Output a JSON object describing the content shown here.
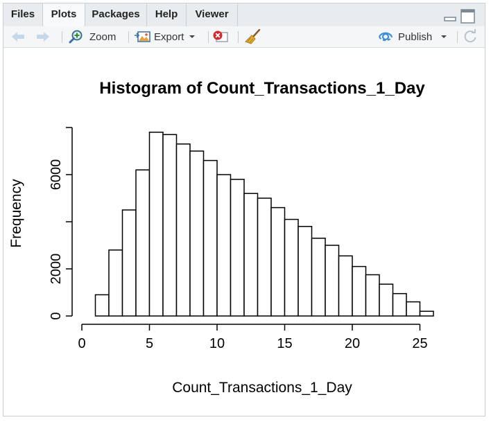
{
  "tabs": [
    {
      "label": "Files",
      "active": false
    },
    {
      "label": "Plots",
      "active": true
    },
    {
      "label": "Packages",
      "active": false
    },
    {
      "label": "Help",
      "active": false
    },
    {
      "label": "Viewer",
      "active": false
    }
  ],
  "toolbar": {
    "zoom_label": "Zoom",
    "export_label": "Export",
    "publish_label": "Publish"
  },
  "icons": {
    "back": "arrow-left-icon",
    "forward": "arrow-right-icon",
    "zoom": "magnifier-plus-icon",
    "export": "image-export-icon",
    "remove": "remove-plot-icon",
    "clear": "broom-icon",
    "publish": "publish-icon",
    "refresh": "refresh-icon",
    "minimize": "minimize-icon",
    "maximize": "maximize-icon"
  },
  "chart_data": {
    "type": "bar",
    "title": "Histogram of Count_Transactions_1_Day",
    "xlabel": "Count_Transactions_1_Day",
    "ylabel": "Frequency",
    "bins": [
      {
        "from": 1,
        "to": 2,
        "count": 900
      },
      {
        "from": 2,
        "to": 3,
        "count": 2800
      },
      {
        "from": 3,
        "to": 4,
        "count": 4500
      },
      {
        "from": 4,
        "to": 5,
        "count": 6200
      },
      {
        "from": 5,
        "to": 6,
        "count": 7800
      },
      {
        "from": 6,
        "to": 7,
        "count": 7700
      },
      {
        "from": 7,
        "to": 8,
        "count": 7300
      },
      {
        "from": 8,
        "to": 9,
        "count": 7000
      },
      {
        "from": 9,
        "to": 10,
        "count": 6600
      },
      {
        "from": 10,
        "to": 11,
        "count": 6000
      },
      {
        "from": 11,
        "to": 12,
        "count": 5800
      },
      {
        "from": 12,
        "to": 13,
        "count": 5200
      },
      {
        "from": 13,
        "to": 14,
        "count": 5000
      },
      {
        "from": 14,
        "to": 15,
        "count": 4600
      },
      {
        "from": 15,
        "to": 16,
        "count": 4100
      },
      {
        "from": 16,
        "to": 17,
        "count": 3800
      },
      {
        "from": 17,
        "to": 18,
        "count": 3300
      },
      {
        "from": 18,
        "to": 19,
        "count": 3000
      },
      {
        "from": 19,
        "to": 20,
        "count": 2550
      },
      {
        "from": 20,
        "to": 21,
        "count": 2100
      },
      {
        "from": 21,
        "to": 22,
        "count": 1750
      },
      {
        "from": 22,
        "to": 23,
        "count": 1350
      },
      {
        "from": 23,
        "to": 24,
        "count": 950
      },
      {
        "from": 24,
        "to": 25,
        "count": 600
      },
      {
        "from": 25,
        "to": 26,
        "count": 200
      }
    ],
    "xlim": [
      0,
      26
    ],
    "ylim": [
      0,
      8000
    ],
    "xticks": [
      0,
      5,
      10,
      15,
      20,
      25
    ],
    "yticks": [
      0,
      2000,
      6000
    ],
    "y_axis_extra_ticks": [
      4000,
      8000
    ],
    "grid": false
  }
}
